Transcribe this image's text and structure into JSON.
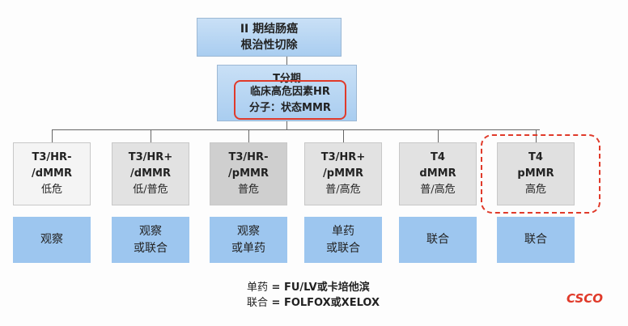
{
  "root": {
    "line1": "II 期结肠癌",
    "line2": "根治性切除"
  },
  "staging": {
    "title": "T分期",
    "line1": "临床高危因素HR",
    "line2": "分子：状态MMR"
  },
  "categories": [
    {
      "code1": "T3/HR-",
      "code2": "/dMMR",
      "risk": "低危",
      "fill": "#f4f4f4"
    },
    {
      "code1": "T3/HR+",
      "code2": "/dMMR",
      "risk": "低/普危",
      "fill": "#e2e2e2"
    },
    {
      "code1": "T3/HR-",
      "code2": "/pMMR",
      "risk": "普危",
      "fill": "#cfcfcf"
    },
    {
      "code1": "T3/HR+",
      "code2": "/pMMR",
      "risk": "普/高危",
      "fill": "#e2e2e2"
    },
    {
      "code1": "T4",
      "code2": "dMMR",
      "risk": "普/高危",
      "fill": "#e2e2e2"
    },
    {
      "code1": "T4",
      "code2": "pMMR",
      "risk": "高危",
      "fill": "#e0e0e0"
    }
  ],
  "actions": [
    {
      "line1": "观察",
      "line2": ""
    },
    {
      "line1": "观察",
      "line2": "或联合"
    },
    {
      "line1": "观察",
      "line2": "或单药"
    },
    {
      "line1": "单药",
      "line2": "或联合"
    },
    {
      "line1": "联合",
      "line2": ""
    },
    {
      "line1": "联合",
      "line2": ""
    }
  ],
  "legend": {
    "mono_label": "单药",
    "mono_def": " = FU/LV或卡培他滨",
    "combo_label": "联合",
    "combo_def": " = FOLFOX或XELOX"
  },
  "logo": "CSCO",
  "colors": {
    "accent_red": "#e03a2a",
    "action_blue": "#9dc6ef"
  }
}
